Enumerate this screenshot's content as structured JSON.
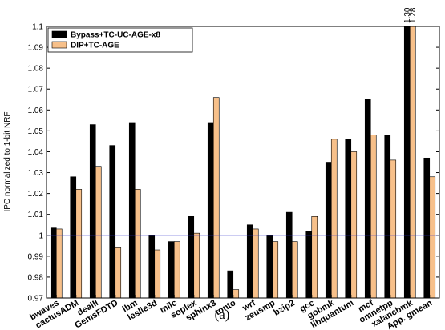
{
  "chart_data": {
    "type": "bar",
    "y_label": "IPC normalized to 1-bit NRF",
    "caption": "(a)",
    "categories": [
      "bwaves",
      "cactusADM",
      "dealII",
      "GemsFDTD",
      "lbm",
      "leslie3d",
      "milc",
      "soplex",
      "sphinx3",
      "tonto",
      "wrf",
      "zeusmp",
      "bzip2",
      "gcc",
      "gobmk",
      "libquantum",
      "mcf",
      "omnetpp",
      "xalancbmk",
      "App. gmean"
    ],
    "series": [
      {
        "name": "Bypass+TC-UC-AGE-x8",
        "color": "#000000",
        "values": [
          1.0035,
          1.028,
          1.053,
          1.043,
          1.054,
          1.0,
          0.997,
          1.009,
          1.054,
          0.983,
          1.005,
          1.0,
          1.011,
          1.002,
          1.035,
          1.046,
          1.065,
          1.048,
          1.3,
          1.037
        ],
        "value_labels": [
          null,
          null,
          null,
          null,
          null,
          null,
          null,
          null,
          null,
          null,
          null,
          null,
          null,
          null,
          null,
          null,
          null,
          null,
          "1.30",
          null
        ]
      },
      {
        "name": "DIP+TC-AGE",
        "color": "#f7c08a",
        "values": [
          1.003,
          1.022,
          1.033,
          0.994,
          1.022,
          0.993,
          0.997,
          1.001,
          1.066,
          0.974,
          1.003,
          0.997,
          0.997,
          1.009,
          1.046,
          1.04,
          1.048,
          1.036,
          1.28,
          1.028
        ],
        "value_labels": [
          null,
          null,
          null,
          null,
          null,
          null,
          null,
          null,
          null,
          null,
          null,
          null,
          null,
          null,
          null,
          null,
          null,
          null,
          "1.28",
          null
        ]
      }
    ],
    "ylim": [
      0.97,
      1.1
    ],
    "yticks": [
      0.97,
      0.98,
      0.99,
      1,
      1.01,
      1.02,
      1.03,
      1.04,
      1.05,
      1.06,
      1.07,
      1.08,
      1.09,
      1.1
    ],
    "reference_line": {
      "value": 1,
      "color": "#3333cc"
    },
    "legend": "top-left"
  }
}
